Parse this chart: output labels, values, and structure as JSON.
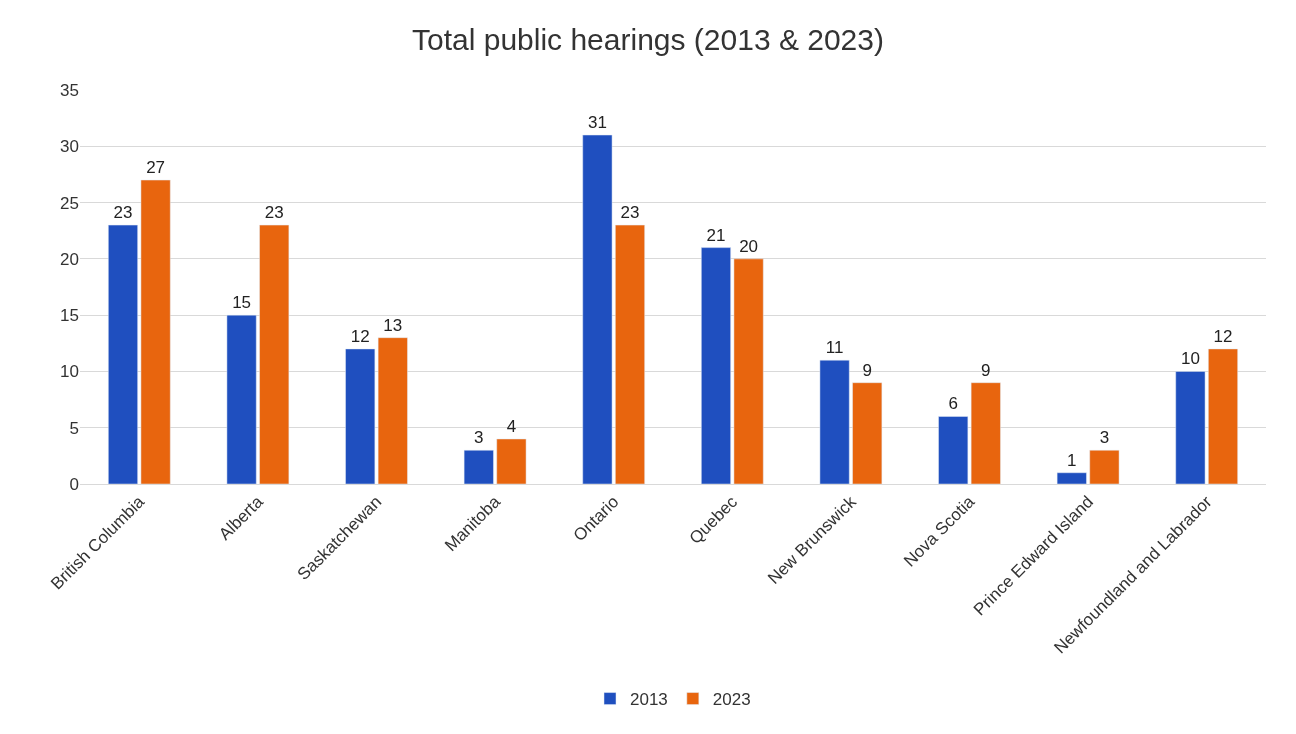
{
  "chart_data": {
    "type": "bar",
    "title": "Total public hearings (2013 & 2023)",
    "categories": [
      "British Columbia",
      "Alberta",
      "Saskatchewan",
      "Manitoba",
      "Ontario",
      "Quebec",
      "New Brunswick",
      "Nova Scotia",
      "Prince Edward Island",
      "Newfoundland and Labrador"
    ],
    "series": [
      {
        "name": "2013",
        "color": "#1f4fbf",
        "values": [
          23,
          15,
          12,
          3,
          31,
          21,
          11,
          6,
          1,
          10
        ]
      },
      {
        "name": "2023",
        "color": "#e8650e",
        "values": [
          27,
          23,
          13,
          4,
          23,
          20,
          9,
          9,
          3,
          12
        ]
      }
    ],
    "ylim": [
      0,
      35
    ],
    "yticks": [
      0,
      5,
      10,
      15,
      20,
      25,
      30,
      35
    ],
    "grid": "y",
    "legend": "bottom",
    "data_labels": true
  }
}
